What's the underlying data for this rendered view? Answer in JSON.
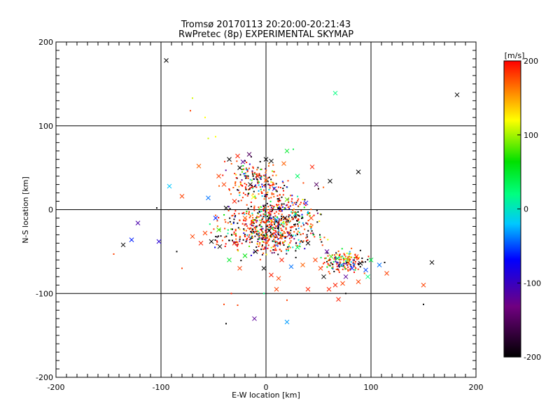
{
  "chart_data": {
    "type": "scatter",
    "title": "Tromsø 20170113 20:20:00-20:21:43",
    "subtitle": "RwPretec (8p) EXPERIMENTAL SKYMAP",
    "xlabel": "E-W location [km]",
    "ylabel": "N-S location [km]",
    "xlim": [
      -200,
      200
    ],
    "ylim": [
      -200,
      200
    ],
    "x_ticks": [
      "-200",
      "-100",
      "0",
      "100",
      "200"
    ],
    "y_ticks": [
      "-200",
      "-100",
      "0",
      "100",
      "200"
    ],
    "grid": true,
    "colorbar": {
      "label": "[m/s]",
      "range": [
        -200,
        200
      ],
      "ticks": [
        "-200",
        "-100",
        "0",
        "100",
        "200"
      ]
    },
    "markers": [
      "x",
      "dot"
    ],
    "points": [
      {
        "x": -95,
        "y": 178,
        "v": -200,
        "m": "x"
      },
      {
        "x": 182,
        "y": 137,
        "v": -200,
        "m": "x"
      },
      {
        "x": 66,
        "y": 139,
        "v": 20,
        "m": "x"
      },
      {
        "x": -70,
        "y": 133,
        "v": 110,
        "m": "dot"
      },
      {
        "x": -72,
        "y": 118,
        "v": 180,
        "m": "dot"
      },
      {
        "x": -58,
        "y": 110,
        "v": 120,
        "m": "dot"
      },
      {
        "x": -92,
        "y": 28,
        "v": -20,
        "m": "x"
      },
      {
        "x": -122,
        "y": -16,
        "v": -110,
        "m": "x"
      },
      {
        "x": -128,
        "y": -36,
        "v": -60,
        "m": "x"
      },
      {
        "x": -136,
        "y": -42,
        "v": -200,
        "m": "x"
      },
      {
        "x": -102,
        "y": -38,
        "v": -90,
        "m": "x"
      },
      {
        "x": -104,
        "y": 2,
        "v": -200,
        "m": "dot"
      },
      {
        "x": -145,
        "y": -53,
        "v": 180,
        "m": "dot"
      },
      {
        "x": 88,
        "y": 45,
        "v": -200,
        "m": "x"
      },
      {
        "x": 61,
        "y": 34,
        "v": -200,
        "m": "x"
      },
      {
        "x": 158,
        "y": -63,
        "v": -200,
        "m": "x"
      },
      {
        "x": 150,
        "y": -90,
        "v": 180,
        "m": "x"
      },
      {
        "x": 150,
        "y": -113,
        "v": -200,
        "m": "dot"
      },
      {
        "x": 113,
        "y": -63,
        "v": -200,
        "m": "dot"
      },
      {
        "x": 115,
        "y": -76,
        "v": 180,
        "m": "x"
      },
      {
        "x": -11,
        "y": -130,
        "v": -120,
        "m": "x"
      },
      {
        "x": 20,
        "y": -134,
        "v": -30,
        "m": "x"
      },
      {
        "x": -38,
        "y": -136,
        "v": -200,
        "m": "dot"
      },
      {
        "x": 69,
        "y": -107,
        "v": 190,
        "m": "x"
      },
      {
        "x": 76,
        "y": -100,
        "v": -200,
        "m": "dot"
      },
      {
        "x": -22,
        "y": 57,
        "v": -120,
        "m": "x"
      },
      {
        "x": -25,
        "y": 50,
        "v": -200,
        "m": "x"
      },
      {
        "x": -16,
        "y": 66,
        "v": -150,
        "m": "x"
      },
      {
        "x": -27,
        "y": 64,
        "v": 190,
        "m": "x"
      },
      {
        "x": 5,
        "y": 58,
        "v": -200,
        "m": "x"
      },
      {
        "x": 0,
        "y": 60,
        "v": -200,
        "m": "x"
      },
      {
        "x": 17,
        "y": 55,
        "v": 170,
        "m": "x"
      },
      {
        "x": 20,
        "y": 70,
        "v": 50,
        "m": "x"
      },
      {
        "x": 26,
        "y": 72,
        "v": 40,
        "m": "dot"
      },
      {
        "x": -5,
        "y": 48,
        "v": 60,
        "m": "dot"
      },
      {
        "x": 30,
        "y": 40,
        "v": 30,
        "m": "x"
      },
      {
        "x": 44,
        "y": 51,
        "v": 190,
        "m": "x"
      },
      {
        "x": 48,
        "y": 30,
        "v": -150,
        "m": "x"
      },
      {
        "x": 50,
        "y": 25,
        "v": -200,
        "m": "dot"
      },
      {
        "x": -64,
        "y": 52,
        "v": 170,
        "m": "x"
      },
      {
        "x": -80,
        "y": 16,
        "v": 180,
        "m": "x"
      },
      {
        "x": -55,
        "y": 14,
        "v": -40,
        "m": "x"
      },
      {
        "x": -38,
        "y": 2,
        "v": -200,
        "m": "x"
      },
      {
        "x": -45,
        "y": -24,
        "v": 80,
        "m": "x"
      },
      {
        "x": -52,
        "y": -38,
        "v": -200,
        "m": "x"
      },
      {
        "x": -44,
        "y": -44,
        "v": -200,
        "m": "x"
      },
      {
        "x": -58,
        "y": -28,
        "v": 180,
        "m": "x"
      },
      {
        "x": -30,
        "y": -40,
        "v": 190,
        "m": "x"
      },
      {
        "x": -20,
        "y": -55,
        "v": 60,
        "m": "x"
      },
      {
        "x": -10,
        "y": -50,
        "v": -200,
        "m": "x"
      },
      {
        "x": -5,
        "y": -30,
        "v": 150,
        "m": "x"
      },
      {
        "x": 3,
        "y": -25,
        "v": -200,
        "m": "x"
      },
      {
        "x": 12,
        "y": -40,
        "v": 190,
        "m": "x"
      },
      {
        "x": 22,
        "y": -30,
        "v": -140,
        "m": "x"
      },
      {
        "x": 30,
        "y": -45,
        "v": 30,
        "m": "x"
      },
      {
        "x": 40,
        "y": -40,
        "v": -200,
        "m": "x"
      },
      {
        "x": 47,
        "y": -60,
        "v": 180,
        "m": "x"
      },
      {
        "x": 58,
        "y": -50,
        "v": -120,
        "m": "x"
      },
      {
        "x": 62,
        "y": -56,
        "v": 80,
        "m": "x"
      },
      {
        "x": 68,
        "y": -58,
        "v": 60,
        "m": "x"
      },
      {
        "x": 72,
        "y": -66,
        "v": -30,
        "m": "x"
      },
      {
        "x": 78,
        "y": -60,
        "v": 100,
        "m": "x"
      },
      {
        "x": 82,
        "y": -70,
        "v": -60,
        "m": "x"
      },
      {
        "x": 86,
        "y": -56,
        "v": 190,
        "m": "x"
      },
      {
        "x": 90,
        "y": -64,
        "v": -200,
        "m": "x"
      },
      {
        "x": 95,
        "y": -72,
        "v": -50,
        "m": "x"
      },
      {
        "x": 97,
        "y": -80,
        "v": 20,
        "m": "x"
      },
      {
        "x": 100,
        "y": -60,
        "v": 40,
        "m": "x"
      },
      {
        "x": 76,
        "y": -80,
        "v": -120,
        "m": "x"
      },
      {
        "x": 73,
        "y": -88,
        "v": 180,
        "m": "x"
      },
      {
        "x": 66,
        "y": -90,
        "v": 190,
        "m": "x"
      },
      {
        "x": 55,
        "y": -80,
        "v": -200,
        "m": "x"
      },
      {
        "x": 52,
        "y": -70,
        "v": 180,
        "m": "x"
      },
      {
        "x": 35,
        "y": -66,
        "v": 170,
        "m": "x"
      },
      {
        "x": 24,
        "y": -68,
        "v": -40,
        "m": "x"
      },
      {
        "x": 15,
        "y": -60,
        "v": 190,
        "m": "x"
      },
      {
        "x": 10,
        "y": -12,
        "v": -30,
        "m": "x"
      },
      {
        "x": 18,
        "y": -10,
        "v": -200,
        "m": "x"
      },
      {
        "x": 28,
        "y": -5,
        "v": 30,
        "m": "x"
      },
      {
        "x": 43,
        "y": -10,
        "v": 180,
        "m": "x"
      },
      {
        "x": -20,
        "y": -10,
        "v": 170,
        "m": "x"
      },
      {
        "x": -30,
        "y": 10,
        "v": 190,
        "m": "x"
      },
      {
        "x": -12,
        "y": 15,
        "v": 120,
        "m": "x"
      },
      {
        "x": 8,
        "y": 25,
        "v": -100,
        "m": "x"
      },
      {
        "x": 20,
        "y": 12,
        "v": 90,
        "m": "x"
      },
      {
        "x": -40,
        "y": 30,
        "v": 180,
        "m": "x"
      },
      {
        "x": -48,
        "y": -10,
        "v": -60,
        "m": "x"
      },
      {
        "x": -62,
        "y": -40,
        "v": 190,
        "m": "x"
      },
      {
        "x": -70,
        "y": -32,
        "v": 180,
        "m": "x"
      },
      {
        "x": -35,
        "y": -60,
        "v": 50,
        "m": "x"
      },
      {
        "x": -25,
        "y": -70,
        "v": 180,
        "m": "x"
      },
      {
        "x": 5,
        "y": -78,
        "v": 190,
        "m": "x"
      },
      {
        "x": 12,
        "y": -82,
        "v": 180,
        "m": "x"
      },
      {
        "x": -2,
        "y": -70,
        "v": -200,
        "m": "x"
      },
      {
        "x": 60,
        "y": -95,
        "v": 190,
        "m": "x"
      },
      {
        "x": 88,
        "y": -86,
        "v": 180,
        "m": "x"
      },
      {
        "x": 108,
        "y": -66,
        "v": -40,
        "m": "x"
      },
      {
        "x": -8,
        "y": 40,
        "v": 190,
        "m": "x"
      },
      {
        "x": 0,
        "y": 35,
        "v": 170,
        "m": "x"
      },
      {
        "x": 38,
        "y": 8,
        "v": -80,
        "m": "x"
      },
      {
        "x": -15,
        "y": 30,
        "v": -200,
        "m": "x"
      },
      {
        "x": -35,
        "y": 60,
        "v": -200,
        "m": "x"
      },
      {
        "x": -45,
        "y": 40,
        "v": 180,
        "m": "x"
      },
      {
        "x": 10,
        "y": -95,
        "v": 180,
        "m": "x"
      },
      {
        "x": 40,
        "y": -95,
        "v": 190,
        "m": "x"
      },
      {
        "x": -27,
        "y": -114,
        "v": 180,
        "m": "dot"
      },
      {
        "x": -40,
        "y": -113,
        "v": 180,
        "m": "dot"
      },
      {
        "x": -33,
        "y": -100,
        "v": 190,
        "m": "dot"
      },
      {
        "x": -2,
        "y": -100,
        "v": 20,
        "m": "dot"
      },
      {
        "x": 20,
        "y": -108,
        "v": 180,
        "m": "dot"
      },
      {
        "x": -55,
        "y": 85,
        "v": 110,
        "m": "dot"
      },
      {
        "x": -48,
        "y": 87,
        "v": 120,
        "m": "dot"
      },
      {
        "x": -80,
        "y": -70,
        "v": 180,
        "m": "dot"
      },
      {
        "x": -85,
        "y": -50,
        "v": -200,
        "m": "dot"
      }
    ]
  }
}
